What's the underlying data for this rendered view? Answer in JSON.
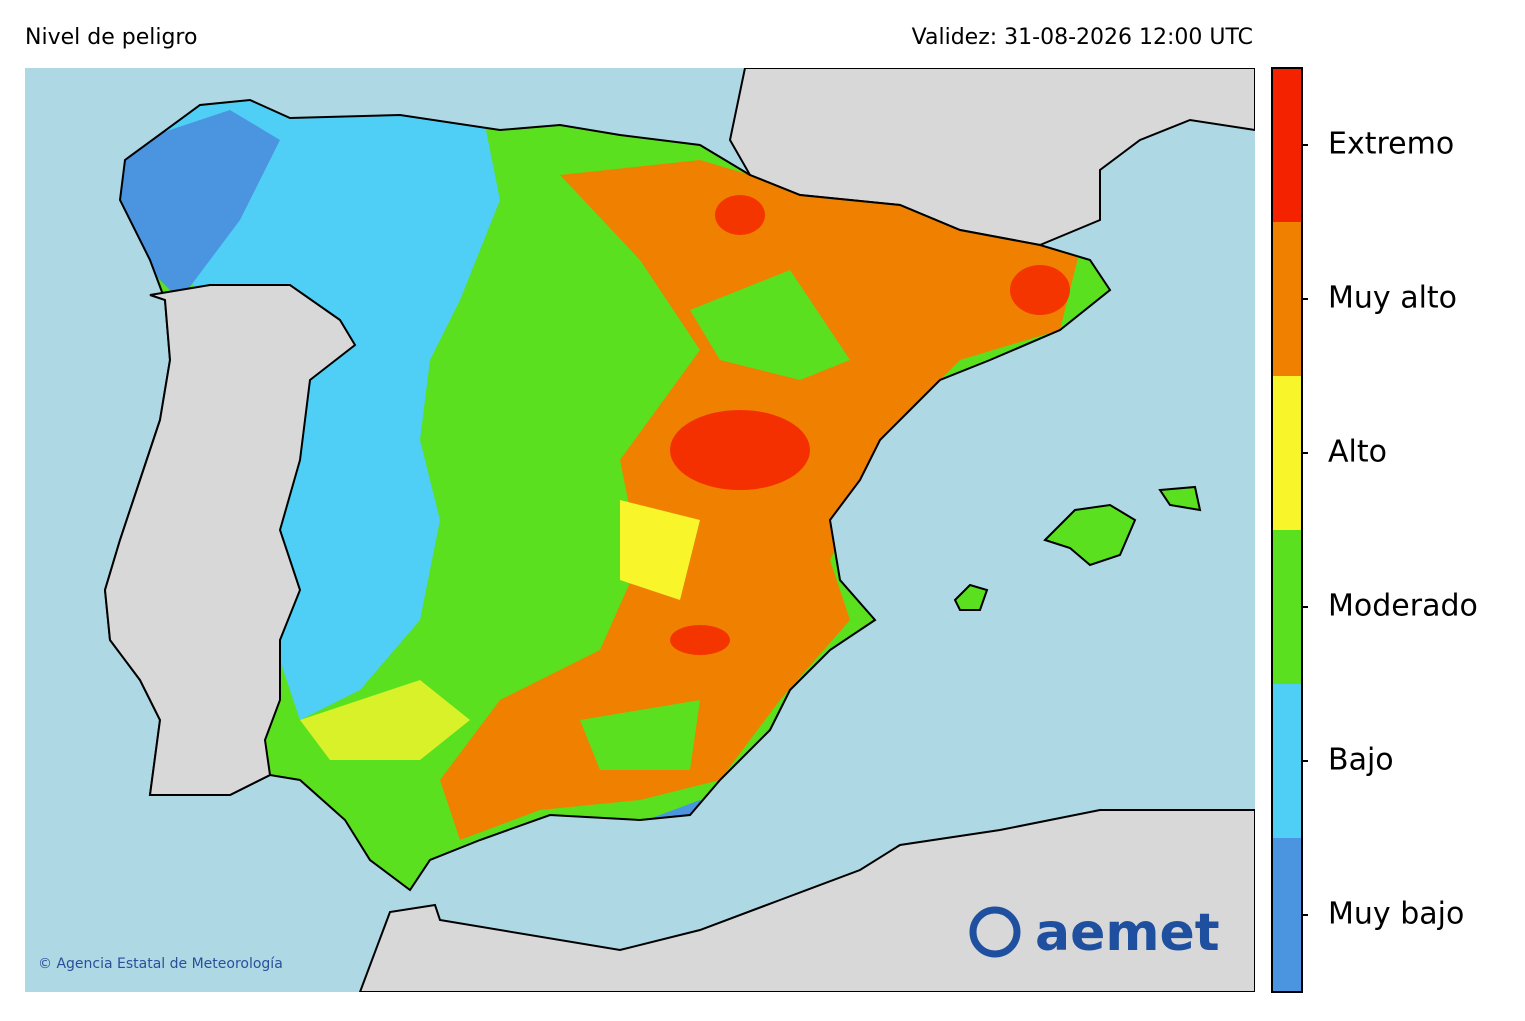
{
  "header": {
    "title": "Nivel de peligro",
    "validity": "Validez: 31-08-2026 12:00 UTC"
  },
  "legend": {
    "levels": [
      {
        "label": "Muy bajo",
        "color": "#4a94e0"
      },
      {
        "label": "Bajo",
        "color": "#4fcff5"
      },
      {
        "label": "Moderado",
        "color": "#5ae01e"
      },
      {
        "label": "Alto",
        "color": "#f8f52a"
      },
      {
        "label": "Muy alto",
        "color": "#f08000"
      },
      {
        "label": "Extremo",
        "color": "#f52200"
      }
    ]
  },
  "footer": {
    "copyright": "© Agencia Estatal de Meteorología",
    "logo": "aemet"
  }
}
